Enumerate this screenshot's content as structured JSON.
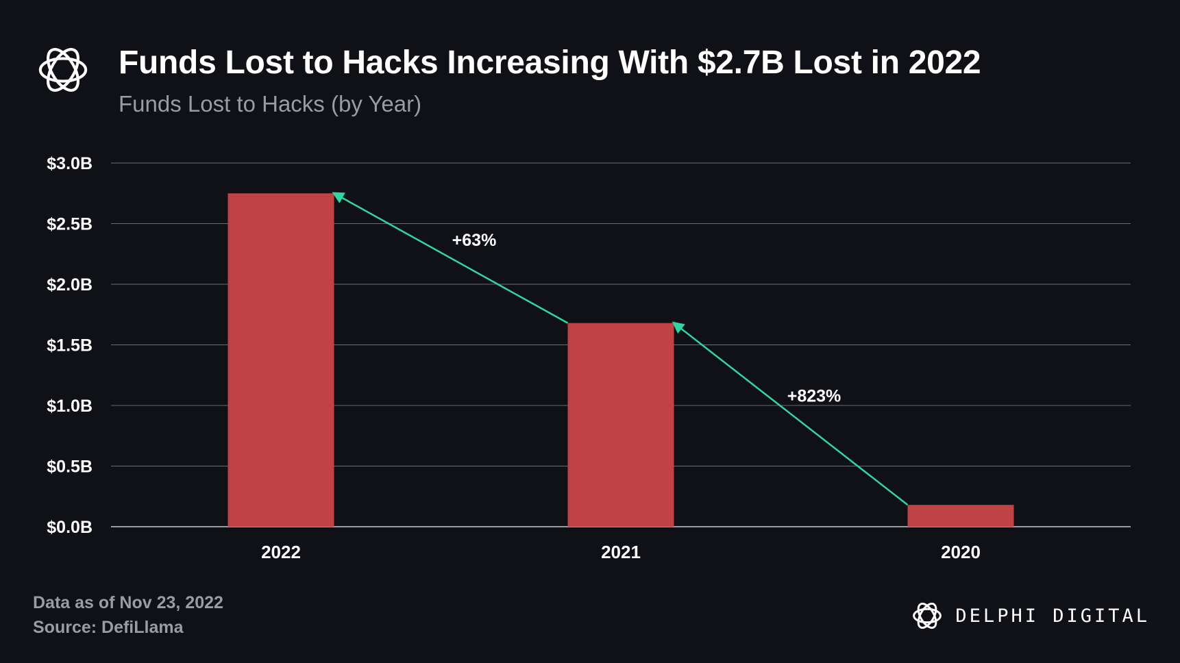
{
  "header": {
    "title": "Funds Lost to Hacks Increasing With $2.7B Lost in 2022",
    "subtitle": "Funds Lost to Hacks (by Year)"
  },
  "footer": {
    "date_note": "Data as of Nov 23, 2022",
    "source_note": "Source: DefiLlama"
  },
  "brand": {
    "name": "DELPHI DIGITAL",
    "logo_icon": "delphi-knot-icon"
  },
  "colors": {
    "background": "#0f1116",
    "bar": "#c14244",
    "arrow": "#2fd6a0",
    "grid": "#6a6c72",
    "muted_text": "#9a9ca3"
  },
  "chart_data": {
    "type": "bar",
    "title": "Funds Lost to Hacks (by Year)",
    "categories": [
      "2022",
      "2021",
      "2020"
    ],
    "values": [
      2.75,
      1.68,
      0.18
    ],
    "ylim": [
      0,
      3.0
    ],
    "yticks": [
      0.0,
      0.5,
      1.0,
      1.5,
      2.0,
      2.5,
      3.0
    ],
    "ytick_labels": [
      "$0.0B",
      "$0.5B",
      "$1.0B",
      "$1.5B",
      "$2.0B",
      "$2.5B",
      "$3.0B"
    ],
    "xlabel": "",
    "ylabel": "",
    "grid": true,
    "annotations": [
      {
        "from": "2021",
        "to": "2022",
        "label": "+63%"
      },
      {
        "from": "2020",
        "to": "2021",
        "label": "+823%"
      }
    ]
  }
}
